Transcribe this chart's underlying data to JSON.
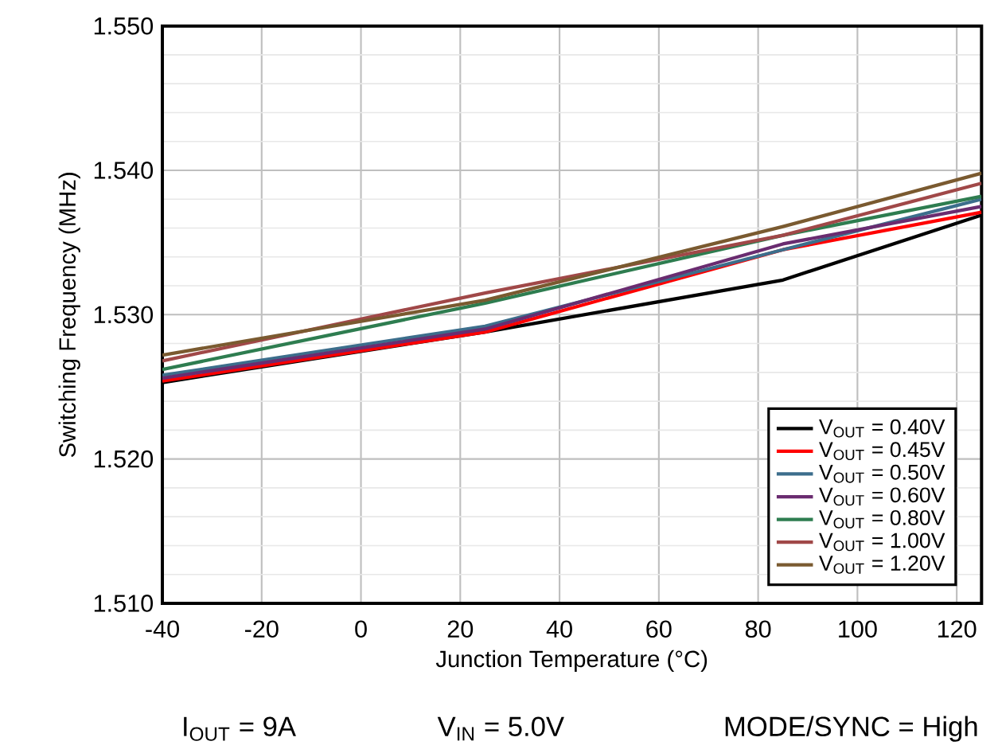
{
  "chart_data": {
    "type": "line",
    "xlabel": "Junction Temperature (°C)",
    "ylabel": "Switching Frequency (MHz)",
    "x": [
      -40,
      25,
      85,
      125
    ],
    "series": [
      {
        "name": "V$_{OUT}$ = 0.40V",
        "color": "#000000",
        "values": [
          1.5253,
          1.5288,
          1.5324,
          1.5369
        ]
      },
      {
        "name": "V$_{OUT}$ = 0.45V",
        "color": "#ff0000",
        "values": [
          1.5254,
          1.5288,
          1.5345,
          1.5371
        ]
      },
      {
        "name": "V$_{OUT}$ = 0.50V",
        "color": "#3c6e8c",
        "values": [
          1.5258,
          1.5292,
          1.5345,
          1.538
        ]
      },
      {
        "name": "V$_{OUT}$ = 0.60V",
        "color": "#6a2c70",
        "values": [
          1.5256,
          1.529,
          1.5349,
          1.5375
        ]
      },
      {
        "name": "V$_{OUT}$ = 0.80V",
        "color": "#2e7d50",
        "values": [
          1.5262,
          1.5308,
          1.5355,
          1.5382
        ]
      },
      {
        "name": "V$_{OUT}$ = 1.00V",
        "color": "#a04848",
        "values": [
          1.5268,
          1.5315,
          1.5355,
          1.5391
        ]
      },
      {
        "name": "V$_{OUT}$ = 1.20V",
        "color": "#7a5a30",
        "values": [
          1.5272,
          1.531,
          1.5361,
          1.5398
        ]
      }
    ],
    "xlim": [
      -40,
      125
    ],
    "xticks": [
      -40,
      -20,
      0,
      20,
      40,
      60,
      80,
      100,
      120
    ],
    "ylim": [
      1.51,
      1.55
    ],
    "yticks": [
      {
        "value": 1.51,
        "label": "1.510"
      },
      {
        "value": 1.52,
        "label": "1.520"
      },
      {
        "value": 1.53,
        "label": "1.530"
      },
      {
        "value": 1.54,
        "label": "1.540"
      },
      {
        "value": 1.55,
        "label": "1.550"
      }
    ],
    "grid": true,
    "legend": "bottom right",
    "marker": "none",
    "line_style": "solid",
    "annotations": [
      "I$_{OUT}$ = 9A",
      "V$_{IN}$ = 5.0V",
      "MODE/SYNC = High"
    ]
  }
}
